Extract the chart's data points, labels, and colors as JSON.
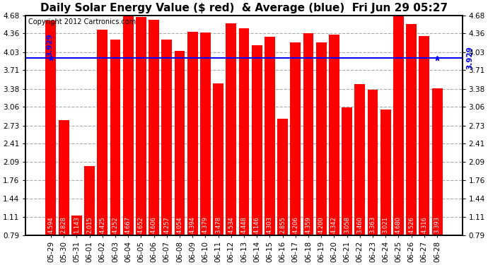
{
  "title": "Daily Solar Energy Value ($ red)  & Average (blue)  Fri Jun 29 05:27",
  "copyright": "Copyright 2012 Cartronics.com",
  "average": 3.929,
  "average_label": "3.929",
  "bar_color": "#ff0000",
  "avg_line_color": "#0000ff",
  "background_color": "#ffffff",
  "plot_bg_color": "#ffffff",
  "grid_color": "#aaaaaa",
  "categories": [
    "05-29",
    "05-30",
    "05-31",
    "06-01",
    "06-02",
    "06-03",
    "06-04",
    "06-05",
    "06-06",
    "06-07",
    "06-08",
    "06-09",
    "06-10",
    "06-11",
    "06-12",
    "06-13",
    "06-14",
    "06-15",
    "06-16",
    "06-17",
    "06-18",
    "06-19",
    "06-20",
    "06-21",
    "06-22",
    "06-23",
    "06-24",
    "06-25",
    "06-26",
    "06-27",
    "06-28"
  ],
  "values": [
    4.594,
    2.828,
    1.143,
    2.015,
    4.425,
    4.252,
    4.667,
    4.652,
    4.606,
    4.257,
    4.054,
    4.394,
    4.379,
    3.478,
    4.534,
    4.448,
    4.146,
    4.303,
    2.855,
    4.206,
    4.359,
    4.2,
    4.342,
    3.058,
    3.46,
    3.363,
    3.021,
    4.68,
    4.526,
    4.316,
    3.393
  ],
  "ylim_min": 0.79,
  "ylim_max": 4.68,
  "yticks": [
    0.79,
    1.11,
    1.44,
    1.76,
    2.09,
    2.41,
    2.73,
    3.06,
    3.38,
    3.71,
    4.03,
    4.36,
    4.68
  ],
  "title_fontsize": 11,
  "copyright_fontsize": 7,
  "tick_label_fontsize": 7.5,
  "bar_label_fontsize": 6.0
}
